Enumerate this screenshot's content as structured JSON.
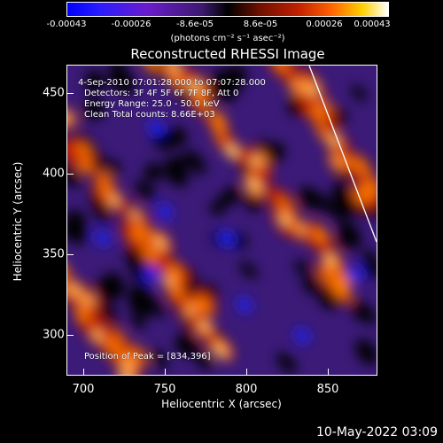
{
  "colorbar": {
    "ticks": [
      "-0.00043",
      "-0.00026",
      "-8.6e-05",
      "8.6e-05",
      "0.00026",
      "0.00043"
    ],
    "units": "(photons cm⁻² s⁻¹ asec⁻²)"
  },
  "title": "Reconstructed RHESSI Image",
  "info": {
    "time_range": "4-Sep-2010 07:01:28.000 to 07:07:28.000",
    "detectors": "Detectors: 3F 4F 5F 6F 7F 8F, Att 0",
    "energy": "Energy Range: 25.0 - 50.0 keV",
    "method": "Clean    Total counts: 8.66E+03",
    "peak": "Position of Peak = [834,396]"
  },
  "axes": {
    "xlabel": "Heliocentric X (arcsec)",
    "ylabel": "Heliocentric Y (arcsec)",
    "xticks": [
      "700",
      "750",
      "800",
      "850"
    ],
    "yticks": [
      "450",
      "400",
      "350",
      "300"
    ]
  },
  "footer_date": "10-May-2022 03:09",
  "colors": {
    "neg_max": "#0000ff",
    "zero": "#000000",
    "pos_max": "#ffffff"
  }
}
